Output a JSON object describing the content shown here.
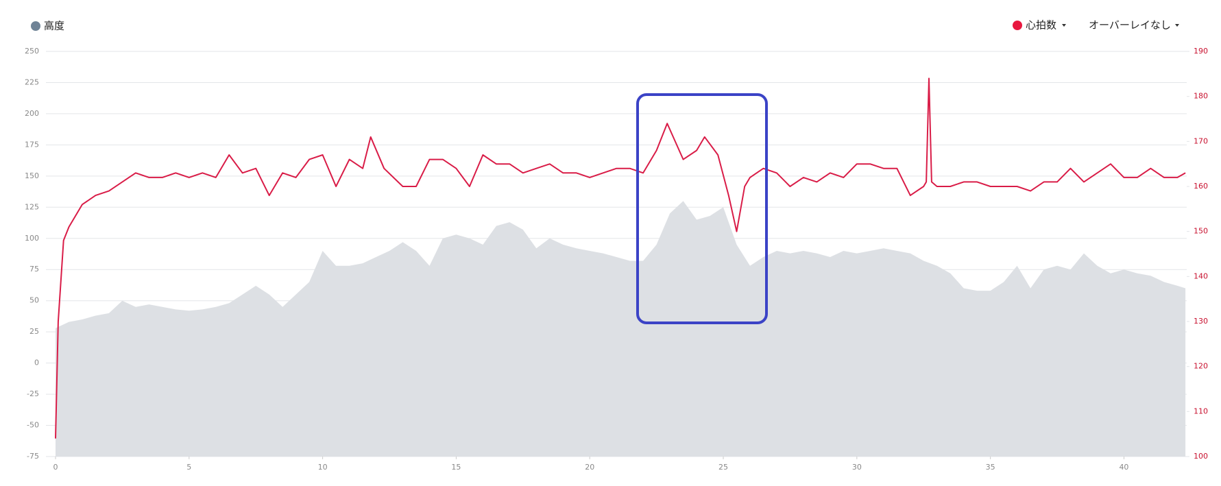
{
  "chart_data": {
    "type": "line",
    "xlim": [
      0,
      42.35
    ],
    "xticks": [
      0,
      5,
      10,
      15,
      20,
      25,
      30,
      35,
      40
    ],
    "ylim": [
      -75,
      250
    ],
    "yticks": [
      -75,
      -50,
      -25,
      0,
      25,
      50,
      75,
      100,
      125,
      150,
      175,
      200,
      225,
      250
    ],
    "y2lim": [
      100,
      190
    ],
    "y2ticks": [
      100,
      110,
      120,
      130,
      140,
      150,
      160,
      170,
      180,
      190
    ],
    "grid": true,
    "overlay_label": "オーバーレイなし",
    "series": [
      {
        "name": "高度",
        "color": "#6f8396",
        "fill": "#dde0e4",
        "x": [
          0,
          0.5,
          1,
          1.5,
          2,
          2.5,
          3,
          3.5,
          4,
          4.5,
          5,
          5.5,
          6,
          6.5,
          7,
          7.5,
          8,
          8.5,
          9,
          9.5,
          10,
          10.5,
          11,
          11.5,
          12,
          12.5,
          13,
          13.5,
          14,
          14.5,
          15,
          15.5,
          16,
          16.5,
          17,
          17.5,
          18,
          18.5,
          19,
          19.5,
          20,
          20.5,
          21,
          21.5,
          22,
          22.5,
          23,
          23.5,
          24,
          24.5,
          25,
          25.5,
          26,
          26.5,
          27,
          27.5,
          28,
          28.5,
          29,
          29.5,
          30,
          30.5,
          31,
          31.5,
          32,
          32.5,
          33,
          33.5,
          34,
          34.5,
          35,
          35.5,
          36,
          36.5,
          37,
          37.5,
          38,
          38.5,
          39,
          39.5,
          40,
          40.5,
          41,
          41.5,
          42,
          42.3
        ],
        "values": [
          28,
          33,
          35,
          38,
          40,
          50,
          45,
          47,
          45,
          43,
          42,
          43,
          45,
          48,
          55,
          62,
          55,
          45,
          55,
          65,
          90,
          78,
          78,
          80,
          85,
          90,
          97,
          90,
          78,
          100,
          103,
          100,
          95,
          110,
          113,
          107,
          92,
          100,
          95,
          92,
          90,
          88,
          85,
          82,
          82,
          95,
          120,
          130,
          115,
          118,
          125,
          95,
          78,
          85,
          90,
          88,
          90,
          88,
          85,
          90,
          88,
          90,
          92,
          90,
          88,
          82,
          78,
          72,
          60,
          58,
          58,
          65,
          78,
          60,
          75,
          78,
          75,
          88,
          78,
          72,
          75,
          72,
          70,
          65,
          62,
          60
        ]
      },
      {
        "name": "心拍数",
        "color": "#d91c47",
        "axis": "y2",
        "x": [
          0,
          0.1,
          0.3,
          0.5,
          1,
          1.5,
          2,
          2.5,
          3,
          3.5,
          4,
          4.5,
          5,
          5.5,
          6,
          6.5,
          7,
          7.5,
          8,
          8.5,
          9,
          9.5,
          10,
          10.5,
          11,
          11.5,
          11.8,
          12.3,
          13,
          13.5,
          14,
          14.5,
          15,
          15.5,
          16,
          16.5,
          17,
          17.5,
          18,
          18.5,
          19,
          19.5,
          20,
          20.5,
          21,
          21.5,
          22,
          22.5,
          22.9,
          23.5,
          24,
          24.3,
          24.8,
          25.2,
          25.5,
          25.8,
          26,
          26.5,
          27,
          27.5,
          28,
          28.5,
          29,
          29.5,
          30,
          30.5,
          31,
          31.5,
          32,
          32.5,
          32.6,
          32.7,
          32.8,
          33,
          33.5,
          34,
          34.5,
          35,
          35.5,
          36,
          36.5,
          37,
          37.5,
          38,
          38.5,
          39,
          39.5,
          40,
          40.5,
          41,
          41.5,
          42,
          42.3
        ],
        "values": [
          104,
          130,
          148,
          151,
          156,
          158,
          159,
          161,
          163,
          162,
          162,
          163,
          162,
          163,
          162,
          167,
          163,
          164,
          158,
          163,
          162,
          166,
          167,
          160,
          166,
          164,
          171,
          164,
          160,
          160,
          166,
          166,
          164,
          160,
          167,
          165,
          165,
          163,
          164,
          165,
          163,
          163,
          162,
          163,
          164,
          164,
          163,
          168,
          174,
          166,
          168,
          171,
          167,
          158,
          150,
          160,
          162,
          164,
          163,
          160,
          162,
          161,
          163,
          162,
          165,
          165,
          164,
          164,
          158,
          160,
          161,
          184,
          161,
          160,
          160,
          161,
          161,
          160,
          160,
          160,
          159,
          161,
          161,
          164,
          161,
          163,
          165,
          162,
          162,
          164,
          162,
          162,
          163
        ]
      }
    ]
  }
}
